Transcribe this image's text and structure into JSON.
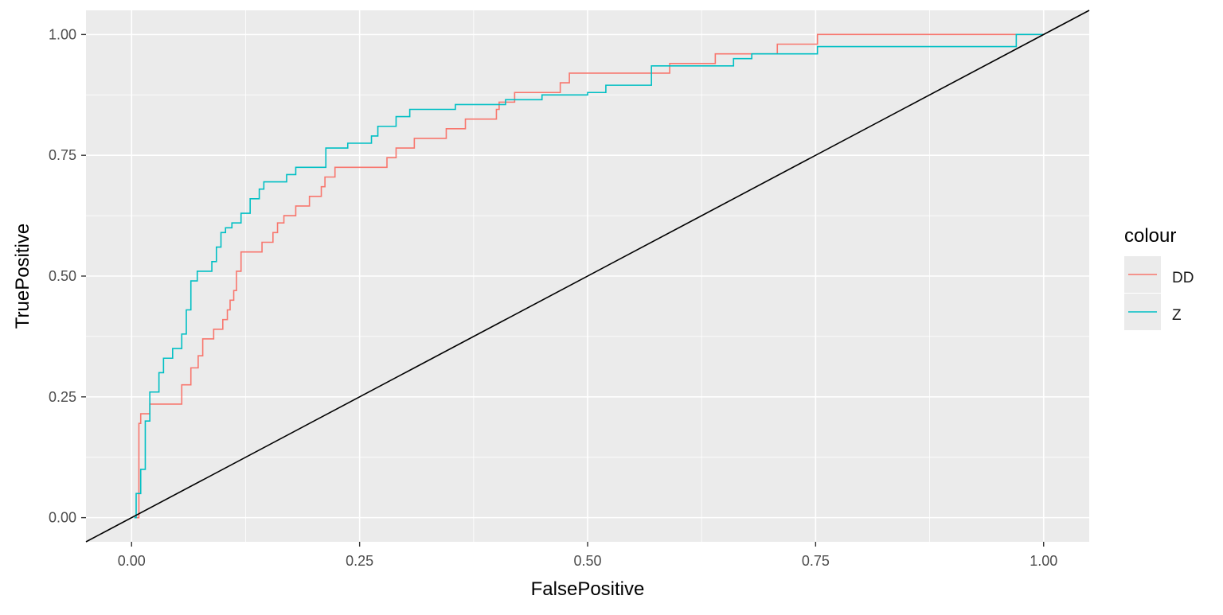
{
  "chart_data": {
    "type": "line",
    "title": "",
    "xlabel": "FalsePositive",
    "ylabel": "TruePositive",
    "xlim": [
      -0.05,
      1.05
    ],
    "ylim": [
      -0.05,
      1.05
    ],
    "x_ticks": [
      0,
      0.25,
      0.5,
      0.75,
      1
    ],
    "x_tick_labels": [
      "0.00",
      "0.25",
      "0.50",
      "0.75",
      "1.00"
    ],
    "y_ticks": [
      0,
      0.25,
      0.5,
      0.75,
      1
    ],
    "y_tick_labels": [
      "0.00",
      "0.25",
      "0.50",
      "0.75",
      "1.00"
    ],
    "grid": true,
    "background_color": "#ebebeb",
    "legend": {
      "title": "colour",
      "placement": "right"
    },
    "series": [
      {
        "name": "DD",
        "color": "#f8766d",
        "step": true,
        "x": [
          0.003,
          0.008,
          0.008,
          0.01,
          0.01,
          0.02,
          0.02,
          0.03,
          0.03,
          0.055,
          0.055,
          0.065,
          0.065,
          0.073,
          0.073,
          0.078,
          0.078,
          0.09,
          0.09,
          0.1,
          0.1,
          0.105,
          0.105,
          0.108,
          0.108,
          0.112,
          0.112,
          0.115,
          0.115,
          0.12,
          0.12,
          0.143,
          0.143,
          0.155,
          0.155,
          0.16,
          0.16,
          0.167,
          0.167,
          0.18,
          0.18,
          0.195,
          0.195,
          0.208,
          0.208,
          0.212,
          0.212,
          0.217,
          0.217,
          0.223,
          0.223,
          0.24,
          0.24,
          0.28,
          0.28,
          0.29,
          0.29,
          0.31,
          0.31,
          0.33,
          0.33,
          0.345,
          0.345,
          0.35,
          0.35,
          0.366,
          0.366,
          0.38,
          0.38,
          0.4,
          0.4,
          0.403,
          0.403,
          0.42,
          0.42,
          0.47,
          0.47,
          0.48,
          0.48,
          0.59,
          0.59,
          0.64,
          0.64,
          0.708,
          0.708,
          0.752,
          0.752,
          1.0
        ],
        "y": [
          0.0,
          0.0,
          0.195,
          0.195,
          0.215,
          0.215,
          0.235,
          0.235,
          0.235,
          0.235,
          0.275,
          0.275,
          0.31,
          0.31,
          0.335,
          0.335,
          0.37,
          0.37,
          0.39,
          0.39,
          0.41,
          0.41,
          0.43,
          0.43,
          0.45,
          0.45,
          0.47,
          0.47,
          0.51,
          0.51,
          0.55,
          0.55,
          0.57,
          0.57,
          0.59,
          0.59,
          0.61,
          0.61,
          0.625,
          0.625,
          0.645,
          0.645,
          0.665,
          0.665,
          0.685,
          0.685,
          0.705,
          0.705,
          0.705,
          0.705,
          0.725,
          0.725,
          0.725,
          0.725,
          0.745,
          0.745,
          0.765,
          0.765,
          0.785,
          0.785,
          0.785,
          0.785,
          0.805,
          0.805,
          0.805,
          0.805,
          0.825,
          0.825,
          0.825,
          0.825,
          0.845,
          0.845,
          0.86,
          0.86,
          0.88,
          0.88,
          0.9,
          0.9,
          0.92,
          0.92,
          0.94,
          0.94,
          0.96,
          0.96,
          0.98,
          0.98,
          1.0,
          1.0
        ]
      },
      {
        "name": "Z",
        "color": "#00bfc4",
        "step": true,
        "x": [
          0.003,
          0.005,
          0.005,
          0.01,
          0.01,
          0.015,
          0.015,
          0.02,
          0.02,
          0.03,
          0.03,
          0.035,
          0.035,
          0.045,
          0.045,
          0.055,
          0.055,
          0.06,
          0.06,
          0.065,
          0.065,
          0.072,
          0.072,
          0.08,
          0.08,
          0.088,
          0.088,
          0.093,
          0.093,
          0.098,
          0.098,
          0.103,
          0.103,
          0.11,
          0.11,
          0.12,
          0.12,
          0.13,
          0.13,
          0.14,
          0.14,
          0.145,
          0.145,
          0.15,
          0.15,
          0.17,
          0.17,
          0.18,
          0.18,
          0.213,
          0.213,
          0.237,
          0.237,
          0.263,
          0.263,
          0.27,
          0.27,
          0.29,
          0.29,
          0.305,
          0.305,
          0.355,
          0.355,
          0.41,
          0.41,
          0.45,
          0.45,
          0.5,
          0.5,
          0.52,
          0.52,
          0.57,
          0.57,
          0.66,
          0.66,
          0.68,
          0.68,
          0.752,
          0.752,
          0.97,
          0.97,
          1.0
        ],
        "y": [
          0.0,
          0.0,
          0.05,
          0.05,
          0.1,
          0.1,
          0.2,
          0.2,
          0.26,
          0.26,
          0.3,
          0.3,
          0.33,
          0.33,
          0.35,
          0.35,
          0.38,
          0.38,
          0.43,
          0.43,
          0.49,
          0.49,
          0.51,
          0.51,
          0.51,
          0.51,
          0.53,
          0.53,
          0.56,
          0.56,
          0.59,
          0.59,
          0.6,
          0.6,
          0.61,
          0.61,
          0.63,
          0.63,
          0.66,
          0.66,
          0.68,
          0.68,
          0.695,
          0.695,
          0.695,
          0.695,
          0.71,
          0.71,
          0.725,
          0.725,
          0.765,
          0.765,
          0.775,
          0.775,
          0.79,
          0.79,
          0.81,
          0.81,
          0.83,
          0.83,
          0.845,
          0.845,
          0.855,
          0.855,
          0.865,
          0.865,
          0.875,
          0.875,
          0.88,
          0.88,
          0.895,
          0.895,
          0.935,
          0.935,
          0.95,
          0.95,
          0.96,
          0.96,
          0.975,
          0.975,
          1.0,
          1.0
        ]
      },
      {
        "name": "",
        "color": "#000000",
        "x": [
          -0.05,
          1.05
        ],
        "y": [
          -0.05,
          1.05
        ]
      }
    ]
  }
}
